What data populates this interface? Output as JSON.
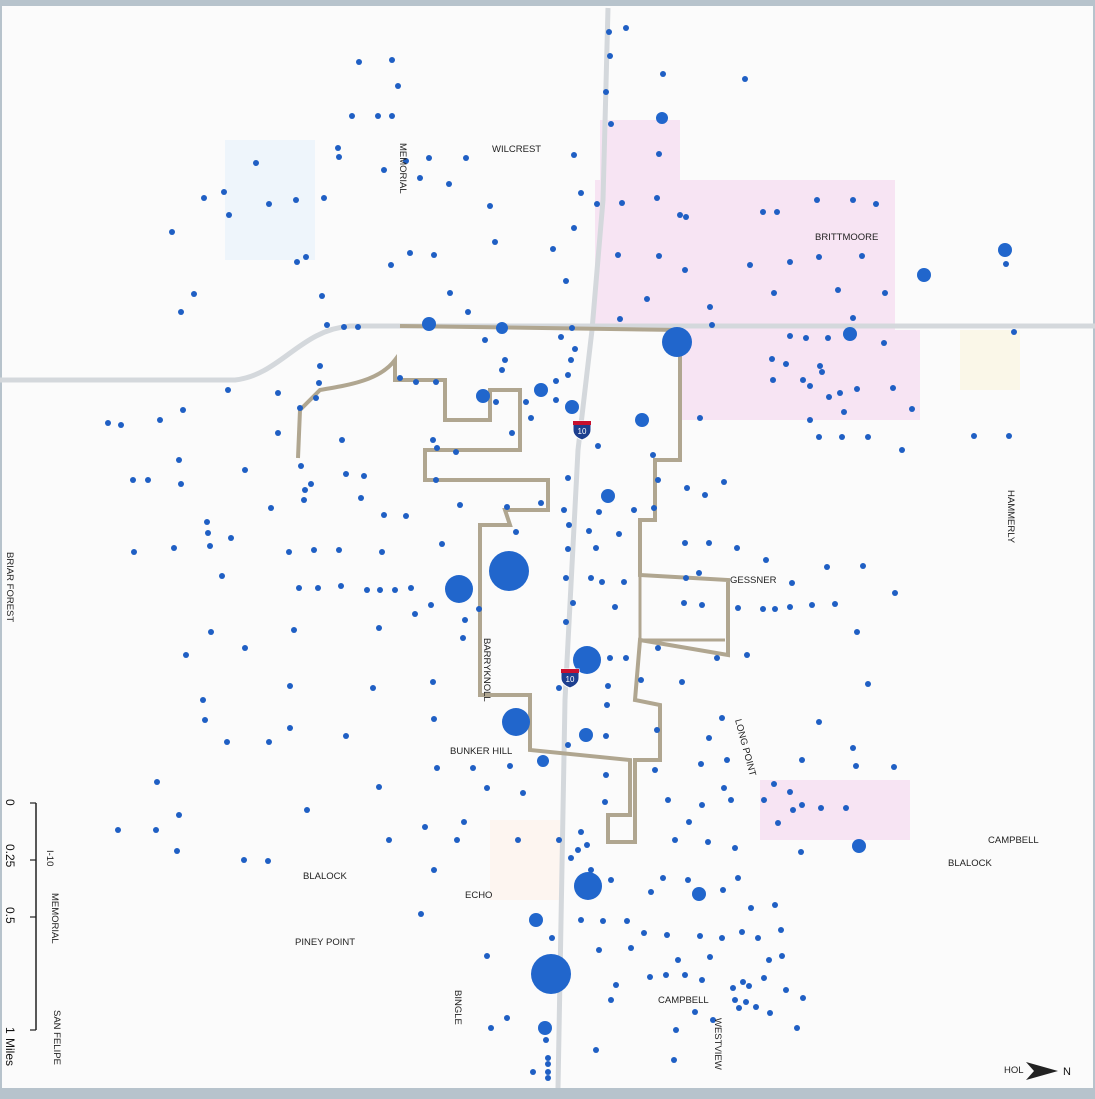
{
  "colors": {
    "background": "#fbfbfb",
    "frame": "#b7c3cc",
    "point": "#1f5fc4",
    "large_point": "#2166cc",
    "boundary": "#b0a690",
    "road": "#d4d8dc",
    "commercial_area": "#f7e4f3",
    "park_area": "#eef5fb",
    "highway_shield": "#1d3f8f",
    "highway_shield_top": "#c8102e"
  },
  "highway_shield": {
    "label": "10",
    "icon": "interstate-shield-icon"
  },
  "street_labels": {
    "wilcrest": "WILCREST",
    "memorial_north": "MEMORIAL",
    "brittmoore": "BRITTMOORE",
    "hammerly": "HAMMERLY",
    "gessner": "GESSNER",
    "barryknoll": "BARRYKNOLL",
    "long_point": "LONG POINT",
    "bunker_hill": "BUNKER HILL",
    "briar_forest": "BRIAR FOREST",
    "campbell_east": "CAMPBELL",
    "blalock_east": "BLALOCK",
    "blalock_west": "BLALOCK",
    "echo": "ECHO",
    "piney_point": "PINEY POINT",
    "bingle": "BINGLE",
    "campbell_south": "CAMPBELL",
    "westview": "WESTVIEW",
    "memorial_south": "MEMORIAL",
    "san_felipe": "SAN FELIPE",
    "ih10_tag": "I-10",
    "hol": "HOL"
  },
  "scale_bar": {
    "ticks": [
      "0",
      "0.25",
      "0.5",
      "1"
    ],
    "unit": "Miles"
  },
  "north_arrow": {
    "label": "N",
    "icon": "north-arrow-icon"
  }
}
